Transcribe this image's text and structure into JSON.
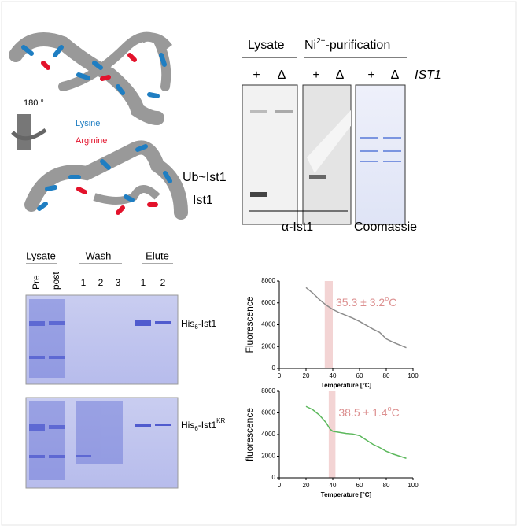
{
  "structure": {
    "rotation": "180 °",
    "legend": [
      "Lysine",
      "Arginine"
    ]
  },
  "blot": {
    "lysate": "Lysate",
    "ni": {
      "base": "Ni",
      "sup": "2+",
      "rest": "-purification"
    },
    "lanes": [
      "+",
      "Δ",
      "+",
      "Δ",
      "+",
      "Δ"
    ],
    "gene": "IST1",
    "bands": [
      "Ub~Ist1",
      "Ist1"
    ],
    "footer": [
      "α-Ist1",
      "Coomassie"
    ]
  },
  "gel": {
    "groups": [
      "Lysate",
      "Wash",
      "Elute"
    ],
    "lanes": [
      "Pre",
      "post",
      "1",
      "2",
      "3",
      "1",
      "2"
    ],
    "rows": [
      {
        "base": "His",
        "sub": "6",
        "rest": "-Ist1"
      },
      {
        "base": "His",
        "sub": "6",
        "rest": "-Ist1",
        "sup": "KR"
      }
    ]
  },
  "chart_data": [
    {
      "type": "line",
      "xlabel": "Temperature [°C]",
      "ylabel": "Fluorescence",
      "color": "#8c8c8c",
      "x": [
        20,
        25,
        30,
        35,
        40,
        45,
        50,
        55,
        60,
        65,
        70,
        75,
        80,
        85,
        90,
        95
      ],
      "values": [
        7400,
        6900,
        6300,
        5800,
        5400,
        5100,
        4850,
        4600,
        4300,
        3950,
        3600,
        3300,
        2700,
        2400,
        2150,
        1900
      ],
      "xlim": [
        0,
        100
      ],
      "xticks": [
        0,
        20,
        40,
        60,
        80,
        100
      ],
      "ylim": [
        0,
        8000
      ],
      "yticks": [
        0,
        2000,
        4000,
        6000,
        8000
      ],
      "highlight": [
        34,
        40
      ],
      "annotation": {
        "text": "35.3 ± 3.2",
        "sup": "o",
        "unit": "C"
      }
    },
    {
      "type": "line",
      "xlabel": "Temperature [°C]",
      "ylabel": "fluorescence",
      "color": "#5cb85c",
      "x": [
        20,
        25,
        30,
        35,
        38,
        40,
        45,
        50,
        55,
        60,
        65,
        70,
        75,
        80,
        85,
        90,
        95
      ],
      "values": [
        6600,
        6300,
        5800,
        5100,
        4500,
        4300,
        4200,
        4100,
        4050,
        3900,
        3500,
        3100,
        2800,
        2450,
        2200,
        2000,
        1800
      ],
      "xlim": [
        0,
        100
      ],
      "xticks": [
        0,
        20,
        40,
        60,
        80,
        100
      ],
      "ylim": [
        0,
        8000
      ],
      "yticks": [
        0,
        2000,
        4000,
        6000,
        8000
      ],
      "highlight": [
        37,
        42
      ],
      "annotation": {
        "text": "38.5 ± 1.4",
        "sup": "o",
        "unit": "C"
      }
    }
  ]
}
